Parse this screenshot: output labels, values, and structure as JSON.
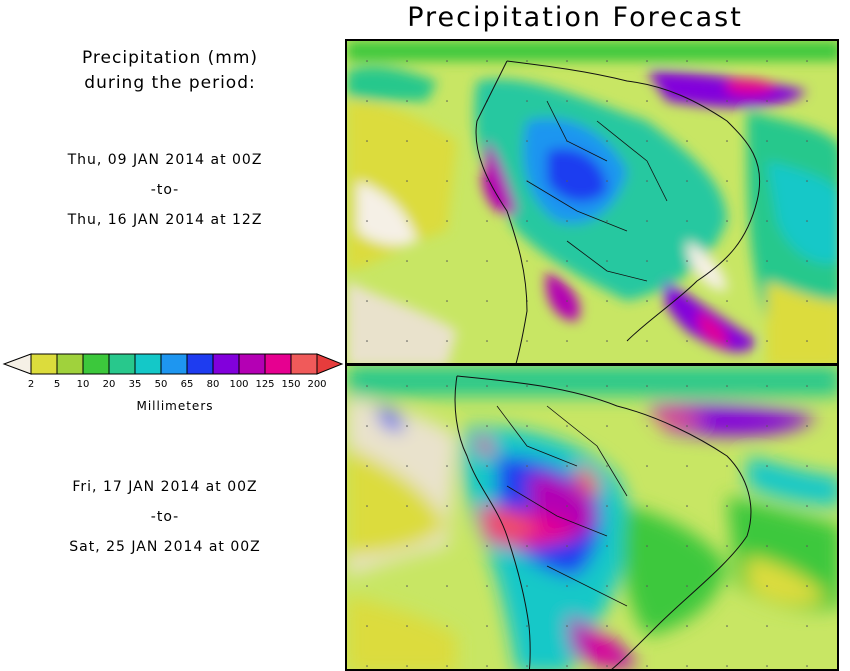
{
  "title": "Precipitation Forecast",
  "subtitle": {
    "line1": "Precipitation (mm)",
    "line2": "during the period:"
  },
  "period1": {
    "start": "Thu, 09 JAN 2014 at 00Z",
    "to": "-to-",
    "end": "Thu, 16 JAN 2014 at 12Z"
  },
  "period2": {
    "start": "Fri, 17 JAN 2014 at 00Z",
    "to": "-to-",
    "end": "Sat, 25 JAN 2014 at 00Z"
  },
  "colorbar": {
    "unit": "Millimeters",
    "labels": [
      "2",
      "5",
      "10",
      "20",
      "35",
      "50",
      "65",
      "80",
      "100",
      "125",
      "150",
      "200"
    ],
    "colors": [
      "#dcdc3c",
      "#a0d23c",
      "#3cc83c",
      "#28c88c",
      "#14c8c8",
      "#1e96f0",
      "#1e3cf0",
      "#8200dc",
      "#b400b4",
      "#e60090",
      "#f05a5a"
    ],
    "under_color": "#f5f0e6",
    "over_color": "#e63c3c"
  }
}
